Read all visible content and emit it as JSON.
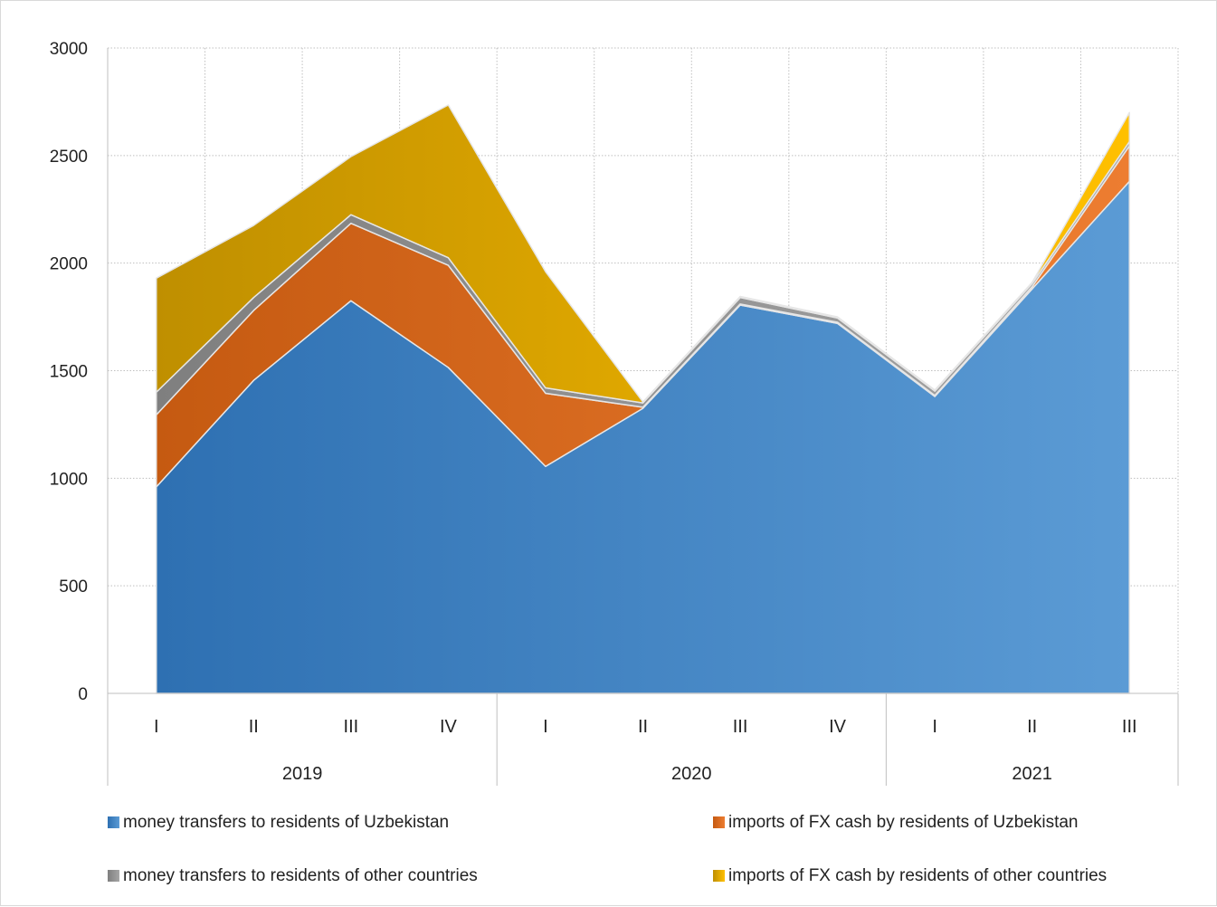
{
  "chart_data": {
    "type": "area",
    "stacked": true,
    "title": "",
    "xlabel": "",
    "ylabel": "",
    "ylim": [
      0,
      3000
    ],
    "yticks": [
      0,
      500,
      1000,
      1500,
      2000,
      2500,
      3000
    ],
    "grid": true,
    "legend_placement": "bottom",
    "groups": [
      {
        "label": "2019",
        "categories": [
          "I",
          "II",
          "III",
          "IV"
        ]
      },
      {
        "label": "2020",
        "categories": [
          "I",
          "II",
          "III",
          "IV"
        ]
      },
      {
        "label": "2021",
        "categories": [
          "I",
          "II",
          "III"
        ]
      }
    ],
    "series": [
      {
        "name": "money transfers to residents of Uzbekistan",
        "color_start": "#2e70b2",
        "color_end": "#5b9bd5",
        "values": [
          960,
          1455,
          1825,
          1515,
          1055,
          1325,
          1805,
          1720,
          1380,
          1880,
          2380
        ]
      },
      {
        "name": "imports of FX cash by residents of Uzbekistan",
        "color_start": "#c55a11",
        "color_end": "#ed7d31",
        "values": [
          335,
          325,
          360,
          475,
          340,
          5,
          5,
          5,
          5,
          10,
          165
        ]
      },
      {
        "name": "money transfers to residents of other countries",
        "color_start": "#7f7f7f",
        "color_end": "#a5a5a5",
        "values": [
          105,
          60,
          40,
          35,
          25,
          20,
          30,
          20,
          20,
          15,
          20
        ]
      },
      {
        "name": "imports of FX cash by residents of other countries",
        "color_start": "#bf8f00",
        "color_end": "#ffc000",
        "values": [
          530,
          335,
          270,
          710,
          540,
          5,
          5,
          5,
          5,
          5,
          135
        ]
      }
    ]
  }
}
